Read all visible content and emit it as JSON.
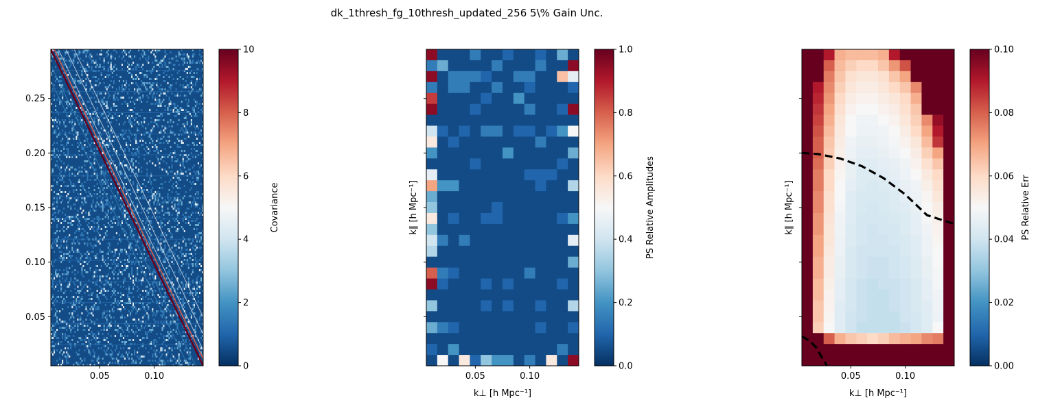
{
  "figure": {
    "title": "dk_1thresh_fg_10thresh_updated_256 5\\% Gain Unc."
  },
  "colormap": {
    "name": "RdBu_r",
    "stops": [
      "#053061",
      "#2166ac",
      "#4393c3",
      "#92c5de",
      "#d1e5f0",
      "#f7f7f7",
      "#fddbc7",
      "#f4a582",
      "#d6604d",
      "#b2182b",
      "#67001f"
    ]
  },
  "chart_data": [
    {
      "type": "heatmap",
      "name": "covariance",
      "title": "",
      "xlabel": "",
      "ylabel": "",
      "xlim": [
        0.005,
        0.145
      ],
      "ylim": [
        0.005,
        0.295
      ],
      "x_ticks": [
        0.05,
        0.1
      ],
      "x_tick_labels": [
        "0.05",
        "0.10"
      ],
      "y_ticks": [
        0.05,
        0.1,
        0.15,
        0.2,
        0.25
      ],
      "y_tick_labels": [
        "0.05",
        "0.10",
        "0.15",
        "0.20",
        "0.25"
      ],
      "colorbar": {
        "label": "Covariance",
        "range": [
          0,
          10
        ],
        "ticks": [
          0,
          2,
          4,
          6,
          8,
          10
        ],
        "tick_labels": [
          "0",
          "2",
          "4",
          "6",
          "8",
          "10"
        ]
      },
      "description_values": {
        "background_level": 0.5,
        "diagonal_level": 10,
        "diagonal_from": [
          0.005,
          0.295
        ],
        "diagonal_to": [
          0.145,
          0.005
        ],
        "secondary_diagonal_level": 8
      }
    },
    {
      "type": "heatmap",
      "name": "ps_relative_amplitudes",
      "xlabel": "k⊥ [h Mpc⁻¹]",
      "ylabel": "k∥ [h Mpc⁻¹]",
      "xlim": [
        0.005,
        0.145
      ],
      "ylim": [
        0.005,
        0.295
      ],
      "x_ticks": [
        0.05,
        0.1
      ],
      "x_tick_labels": [
        "0.05",
        "0.10"
      ],
      "y_ticks": [
        0.05,
        0.1,
        0.15,
        0.2,
        0.25
      ],
      "y_tick_labels": [
        "",
        "",
        "",
        "",
        ""
      ],
      "colorbar": {
        "label": "PS Relative Amplitudes",
        "range": [
          0,
          1
        ],
        "ticks": [
          0,
          0.2,
          0.4,
          0.6,
          0.8,
          1.0
        ],
        "tick_labels": [
          "0.0",
          "0.2",
          "0.4",
          "0.6",
          "0.8",
          "1.0"
        ]
      },
      "n_cols": 14,
      "n_rows": 29,
      "values_top_to_bottom": [
        [
          0.95,
          0.05,
          0.05,
          0.05,
          0.15,
          0.05,
          0.05,
          0.1,
          0.05,
          0.05,
          0.1,
          0.05,
          0.25,
          0.05
        ],
        [
          0.15,
          0.25,
          0.05,
          0.05,
          0.05,
          0.05,
          0.15,
          0.05,
          0.05,
          0.05,
          0.15,
          0.05,
          0.05,
          0.95
        ],
        [
          0.95,
          0.05,
          0.15,
          0.15,
          0.15,
          0.1,
          0.05,
          0.05,
          0.15,
          0.15,
          0.05,
          0.05,
          0.65,
          0.45
        ],
        [
          0.15,
          0.05,
          0.15,
          0.15,
          0.05,
          0.05,
          0.15,
          0.05,
          0.05,
          0.1,
          0.05,
          0.05,
          0.05,
          0.1
        ],
        [
          0.85,
          0.05,
          0.05,
          0.05,
          0.05,
          0.1,
          0.05,
          0.05,
          0.2,
          0.05,
          0.05,
          0.05,
          0.05,
          0.05
        ],
        [
          0.95,
          0.05,
          0.05,
          0.05,
          0.1,
          0.05,
          0.05,
          0.05,
          0.05,
          0.15,
          0.05,
          0.05,
          0.1,
          0.95
        ],
        [
          0.05,
          0.05,
          0.05,
          0.05,
          0.05,
          0.05,
          0.05,
          0.05,
          0.05,
          0.05,
          0.05,
          0.05,
          0.05,
          0.05
        ],
        [
          0.4,
          0.1,
          0.05,
          0.1,
          0.05,
          0.15,
          0.15,
          0.05,
          0.1,
          0.1,
          0.05,
          0.1,
          0.2,
          0.5
        ],
        [
          0.55,
          0.05,
          0.1,
          0.05,
          0.05,
          0.05,
          0.05,
          0.05,
          0.05,
          0.05,
          0.15,
          0.05,
          0.05,
          0.05
        ],
        [
          0.2,
          0.05,
          0.05,
          0.05,
          0.05,
          0.05,
          0.05,
          0.2,
          0.05,
          0.05,
          0.05,
          0.05,
          0.05,
          0.25
        ],
        [
          0.05,
          0.05,
          0.05,
          0.05,
          0.1,
          0.05,
          0.05,
          0.05,
          0.05,
          0.05,
          0.05,
          0.05,
          0.1,
          0.05
        ],
        [
          0.45,
          0.05,
          0.05,
          0.05,
          0.05,
          0.05,
          0.05,
          0.05,
          0.05,
          0.1,
          0.1,
          0.1,
          0.05,
          0.05
        ],
        [
          0.7,
          0.2,
          0.2,
          0.05,
          0.05,
          0.05,
          0.05,
          0.05,
          0.05,
          0.05,
          0.1,
          0.05,
          0.05,
          0.35
        ],
        [
          0.25,
          0.05,
          0.05,
          0.05,
          0.05,
          0.05,
          0.05,
          0.05,
          0.05,
          0.05,
          0.05,
          0.05,
          0.05,
          0.05
        ],
        [
          0.3,
          0.05,
          0.05,
          0.05,
          0.05,
          0.05,
          0.1,
          0.05,
          0.05,
          0.05,
          0.05,
          0.05,
          0.05,
          0.05
        ],
        [
          0.55,
          0.05,
          0.1,
          0.05,
          0.05,
          0.1,
          0.1,
          0.05,
          0.05,
          0.05,
          0.05,
          0.05,
          0.1,
          0.2
        ],
        [
          0.3,
          0.05,
          0.05,
          0.05,
          0.05,
          0.05,
          0.05,
          0.05,
          0.05,
          0.05,
          0.05,
          0.05,
          0.05,
          0.05
        ],
        [
          0.4,
          0.15,
          0.05,
          0.15,
          0.05,
          0.05,
          0.05,
          0.05,
          0.05,
          0.05,
          0.05,
          0.05,
          0.05,
          0.45
        ],
        [
          0.35,
          0.05,
          0.05,
          0.05,
          0.05,
          0.05,
          0.05,
          0.05,
          0.05,
          0.05,
          0.05,
          0.05,
          0.05,
          0.05
        ],
        [
          0.05,
          0.05,
          0.05,
          0.05,
          0.05,
          0.05,
          0.05,
          0.05,
          0.05,
          0.05,
          0.05,
          0.05,
          0.05,
          0.25
        ],
        [
          0.8,
          0.15,
          0.1,
          0.05,
          0.05,
          0.05,
          0.05,
          0.05,
          0.05,
          0.15,
          0.05,
          0.05,
          0.05,
          0.05
        ],
        [
          0.95,
          0.1,
          0.05,
          0.05,
          0.05,
          0.1,
          0.05,
          0.1,
          0.05,
          0.05,
          0.05,
          0.05,
          0.1,
          0.05
        ],
        [
          0.05,
          0.05,
          0.05,
          0.05,
          0.05,
          0.05,
          0.05,
          0.05,
          0.05,
          0.05,
          0.05,
          0.05,
          0.05,
          0.05
        ],
        [
          0.3,
          0.05,
          0.05,
          0.05,
          0.05,
          0.1,
          0.05,
          0.1,
          0.05,
          0.05,
          0.1,
          0.05,
          0.05,
          0.35
        ],
        [
          0.05,
          0.05,
          0.05,
          0.05,
          0.05,
          0.05,
          0.05,
          0.05,
          0.05,
          0.05,
          0.05,
          0.05,
          0.05,
          0.05
        ],
        [
          0.25,
          0.15,
          0.1,
          0.05,
          0.05,
          0.05,
          0.05,
          0.05,
          0.05,
          0.05,
          0.1,
          0.05,
          0.05,
          0.1
        ],
        [
          0.05,
          0.05,
          0.05,
          0.05,
          0.05,
          0.05,
          0.05,
          0.05,
          0.05,
          0.05,
          0.05,
          0.05,
          0.05,
          0.05
        ],
        [
          0.1,
          0.05,
          0.2,
          0.05,
          0.05,
          0.05,
          0.05,
          0.05,
          0.05,
          0.05,
          0.05,
          0.05,
          0.15,
          0.05
        ],
        [
          0.05,
          0.5,
          0.05,
          0.55,
          0.1,
          0.3,
          0.2,
          0.2,
          0.05,
          0.15,
          0.05,
          0.55,
          0.05,
          0.95
        ]
      ]
    },
    {
      "type": "heatmap",
      "name": "ps_relative_err",
      "xlabel": "k⊥ [h Mpc⁻¹]",
      "ylabel": "k∥ [h Mpc⁻¹]",
      "xlim": [
        0.005,
        0.145
      ],
      "ylim": [
        0.005,
        0.295
      ],
      "x_ticks": [
        0.05,
        0.1
      ],
      "x_tick_labels": [
        "0.05",
        "0.10"
      ],
      "y_ticks": [
        0.05,
        0.1,
        0.15,
        0.2,
        0.25
      ],
      "y_tick_labels": [
        "",
        "",
        "",
        "",
        ""
      ],
      "colorbar": {
        "label": "PS Relative Err",
        "range": [
          0,
          0.1
        ],
        "ticks": [
          0,
          0.02,
          0.04,
          0.06,
          0.08,
          0.1
        ],
        "tick_labels": [
          "0.00",
          "0.02",
          "0.04",
          "0.06",
          "0.08",
          "0.10"
        ]
      },
      "n_cols": 14,
      "n_rows": 29,
      "values_top_to_bottom": [
        [
          0.1,
          0.1,
          0.09,
          0.068,
          0.066,
          0.066,
          0.066,
          0.068,
          0.09,
          0.1,
          0.1,
          0.1,
          0.1,
          0.1
        ],
        [
          0.1,
          0.1,
          0.08,
          0.066,
          0.062,
          0.06,
          0.06,
          0.064,
          0.072,
          0.082,
          0.1,
          0.1,
          0.1,
          0.1
        ],
        [
          0.1,
          0.1,
          0.076,
          0.064,
          0.058,
          0.056,
          0.056,
          0.058,
          0.064,
          0.07,
          0.1,
          0.1,
          0.1,
          0.1
        ],
        [
          0.1,
          0.09,
          0.074,
          0.062,
          0.056,
          0.054,
          0.054,
          0.056,
          0.06,
          0.064,
          0.074,
          0.1,
          0.1,
          0.1
        ],
        [
          0.1,
          0.088,
          0.072,
          0.06,
          0.054,
          0.052,
          0.052,
          0.054,
          0.056,
          0.06,
          0.068,
          0.1,
          0.1,
          0.1
        ],
        [
          0.1,
          0.086,
          0.07,
          0.058,
          0.052,
          0.05,
          0.05,
          0.052,
          0.054,
          0.058,
          0.064,
          0.1,
          0.1,
          0.1
        ],
        [
          0.1,
          0.084,
          0.068,
          0.056,
          0.05,
          0.048,
          0.048,
          0.05,
          0.052,
          0.056,
          0.062,
          0.074,
          0.094,
          0.1
        ],
        [
          0.1,
          0.082,
          0.066,
          0.055,
          0.05,
          0.047,
          0.047,
          0.048,
          0.05,
          0.054,
          0.06,
          0.07,
          0.09,
          0.1
        ],
        [
          0.1,
          0.08,
          0.064,
          0.054,
          0.048,
          0.046,
          0.046,
          0.047,
          0.049,
          0.052,
          0.056,
          0.066,
          0.086,
          0.1
        ],
        [
          0.1,
          0.08,
          0.063,
          0.053,
          0.047,
          0.045,
          0.045,
          0.046,
          0.048,
          0.05,
          0.054,
          0.062,
          0.07,
          0.1
        ],
        [
          0.1,
          0.078,
          0.062,
          0.052,
          0.046,
          0.044,
          0.044,
          0.045,
          0.046,
          0.048,
          0.052,
          0.058,
          0.064,
          0.1
        ],
        [
          0.1,
          0.076,
          0.06,
          0.051,
          0.046,
          0.043,
          0.043,
          0.044,
          0.045,
          0.047,
          0.05,
          0.055,
          0.06,
          0.1
        ],
        [
          0.1,
          0.076,
          0.06,
          0.05,
          0.045,
          0.043,
          0.042,
          0.043,
          0.044,
          0.046,
          0.048,
          0.053,
          0.058,
          0.1
        ],
        [
          0.1,
          0.074,
          0.058,
          0.05,
          0.044,
          0.042,
          0.042,
          0.042,
          0.043,
          0.045,
          0.047,
          0.051,
          0.056,
          0.1
        ],
        [
          0.1,
          0.074,
          0.058,
          0.049,
          0.044,
          0.042,
          0.041,
          0.042,
          0.043,
          0.044,
          0.046,
          0.05,
          0.054,
          0.1
        ],
        [
          0.1,
          0.072,
          0.057,
          0.048,
          0.044,
          0.041,
          0.041,
          0.041,
          0.042,
          0.043,
          0.045,
          0.049,
          0.053,
          0.1
        ],
        [
          0.1,
          0.072,
          0.056,
          0.048,
          0.043,
          0.041,
          0.04,
          0.041,
          0.041,
          0.043,
          0.045,
          0.048,
          0.052,
          0.1
        ],
        [
          0.1,
          0.07,
          0.056,
          0.047,
          0.043,
          0.041,
          0.04,
          0.04,
          0.041,
          0.042,
          0.044,
          0.047,
          0.051,
          0.1
        ],
        [
          0.1,
          0.07,
          0.055,
          0.047,
          0.042,
          0.04,
          0.04,
          0.04,
          0.04,
          0.042,
          0.044,
          0.047,
          0.05,
          0.1
        ],
        [
          0.1,
          0.068,
          0.054,
          0.046,
          0.042,
          0.04,
          0.039,
          0.039,
          0.04,
          0.041,
          0.043,
          0.046,
          0.05,
          0.1
        ],
        [
          0.1,
          0.068,
          0.054,
          0.046,
          0.042,
          0.04,
          0.039,
          0.039,
          0.04,
          0.041,
          0.043,
          0.046,
          0.049,
          0.1
        ],
        [
          0.1,
          0.066,
          0.053,
          0.045,
          0.041,
          0.039,
          0.038,
          0.039,
          0.039,
          0.04,
          0.042,
          0.045,
          0.049,
          0.1
        ],
        [
          0.1,
          0.066,
          0.052,
          0.045,
          0.041,
          0.039,
          0.038,
          0.038,
          0.039,
          0.04,
          0.042,
          0.045,
          0.048,
          0.1
        ],
        [
          0.1,
          0.064,
          0.052,
          0.044,
          0.041,
          0.039,
          0.038,
          0.038,
          0.039,
          0.04,
          0.042,
          0.044,
          0.048,
          0.1
        ],
        [
          0.1,
          0.064,
          0.051,
          0.044,
          0.04,
          0.039,
          0.038,
          0.038,
          0.038,
          0.04,
          0.041,
          0.044,
          0.047,
          0.1
        ],
        [
          0.1,
          0.062,
          0.05,
          0.044,
          0.04,
          0.038,
          0.038,
          0.038,
          0.038,
          0.039,
          0.041,
          0.044,
          0.05,
          0.1
        ],
        [
          0.1,
          0.1,
          0.08,
          0.068,
          0.064,
          0.062,
          0.06,
          0.062,
          0.066,
          0.068,
          0.07,
          0.074,
          0.076,
          0.1
        ],
        [
          0.1,
          0.1,
          0.1,
          0.1,
          0.1,
          0.1,
          0.1,
          0.1,
          0.1,
          0.1,
          0.1,
          0.1,
          0.1,
          0.1
        ],
        [
          0.1,
          0.1,
          0.1,
          0.1,
          0.1,
          0.1,
          0.1,
          0.1,
          0.1,
          0.1,
          0.1,
          0.1,
          0.1,
          0.1
        ]
      ],
      "overlay_curves": [
        {
          "style": "dashed",
          "color": "#000000",
          "x": [
            0.005,
            0.02,
            0.04,
            0.06,
            0.08,
            0.1,
            0.12,
            0.145
          ],
          "y": [
            0.2,
            0.199,
            0.195,
            0.188,
            0.177,
            0.162,
            0.143,
            0.135
          ]
        },
        {
          "style": "dashed",
          "color": "#000000",
          "x": [
            0.005,
            0.012,
            0.018,
            0.022,
            0.028
          ],
          "y": [
            0.032,
            0.028,
            0.022,
            0.015,
            0.005
          ]
        }
      ]
    }
  ]
}
